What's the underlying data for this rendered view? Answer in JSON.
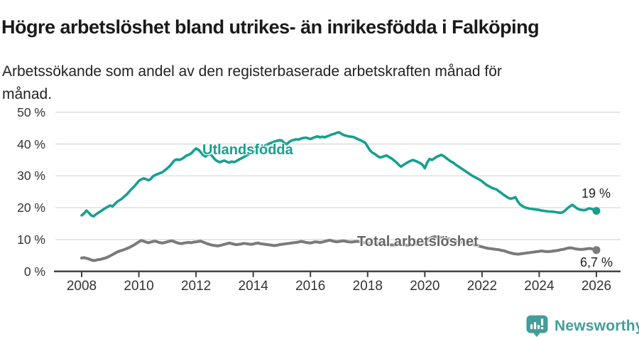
{
  "header": {
    "title": "Högre arbetslöshet bland utrikes- än inrikesfödda i Falköping",
    "subtitle": "Arbetssökande som andel av den registerbaserade arbetskraften månad för månad."
  },
  "chart_data": {
    "type": "line",
    "title": "Högre arbetslöshet bland utrikes- än inrikesfödda i Falköping",
    "subtitle": "Arbetssökande som andel av den registerbaserade arbetskraften månad för månad.",
    "x_unit": "year-month",
    "x_start": 2008,
    "x_step_months": 1,
    "x_range": [
      2008,
      2026
    ],
    "ylim": [
      0,
      50
    ],
    "y_ticks": [
      0,
      10,
      20,
      30,
      40,
      50
    ],
    "y_tick_suffix": " %",
    "x_ticks": [
      2008,
      2010,
      2012,
      2014,
      2016,
      2018,
      2020,
      2022,
      2024,
      2026
    ],
    "grid": true,
    "legend_position": "inline-labels",
    "series": [
      {
        "name": "Utlandsfödda",
        "color": "#16a090",
        "end_label": "19 %",
        "end_value": 19,
        "values": [
          17.6,
          18.2,
          19.1,
          18.4,
          17.6,
          17.3,
          17.9,
          18.4,
          18.9,
          19.4,
          19.9,
          20.3,
          20.7,
          20.4,
          21.2,
          21.9,
          22.4,
          22.9,
          23.6,
          24.2,
          25.1,
          25.9,
          26.6,
          27.5,
          28.4,
          28.9,
          29.2,
          29.0,
          28.6,
          29.0,
          29.9,
          30.3,
          30.6,
          30.9,
          31.2,
          31.8,
          32.4,
          33.1,
          34.0,
          34.9,
          35.2,
          35.0,
          35.3,
          35.8,
          36.4,
          36.6,
          37.1,
          37.9,
          38.6,
          38.2,
          37.4,
          36.5,
          36.1,
          36.6,
          36.9,
          36.0,
          35.1,
          34.6,
          34.3,
          34.6,
          34.8,
          34.4,
          34.2,
          34.5,
          34.3,
          34.7,
          35.1,
          35.5,
          35.9,
          36.4,
          36.7,
          37.0,
          37.4,
          37.8,
          38.2,
          38.6,
          39.0,
          39.5,
          39.9,
          40.2,
          40.5,
          40.8,
          41.0,
          41.2,
          41.1,
          40.4,
          39.9,
          40.6,
          41.1,
          41.3,
          41.5,
          41.4,
          41.7,
          41.9,
          42.0,
          41.8,
          41.6,
          41.9,
          42.2,
          42.4,
          42.1,
          42.3,
          42.1,
          42.4,
          42.7,
          43.0,
          43.2,
          43.5,
          43.7,
          43.2,
          42.8,
          42.6,
          42.4,
          42.3,
          42.2,
          41.9,
          41.5,
          41.2,
          40.8,
          40.4,
          39.2,
          38.0,
          37.3,
          36.9,
          36.3,
          35.8,
          35.9,
          36.2,
          36.4,
          35.9,
          35.5,
          34.9,
          34.3,
          33.5,
          32.9,
          33.4,
          33.9,
          34.3,
          34.7,
          35.0,
          34.7,
          34.4,
          34.0,
          33.5,
          32.4,
          34.2,
          35.3,
          35.0,
          35.5,
          36.0,
          36.3,
          36.6,
          36.2,
          35.6,
          35.0,
          34.5,
          34.1,
          33.5,
          33.0,
          32.5,
          32.0,
          31.5,
          31.0,
          30.5,
          30.0,
          29.6,
          29.2,
          28.8,
          28.3,
          27.7,
          27.1,
          26.7,
          26.3,
          26.0,
          25.8,
          25.2,
          24.7,
          24.1,
          23.6,
          23.1,
          22.8,
          23.0,
          23.3,
          22.0,
          21.0,
          20.5,
          20.1,
          19.9,
          19.7,
          19.6,
          19.5,
          19.4,
          19.3,
          19.1,
          19.0,
          18.9,
          18.8,
          18.8,
          18.7,
          18.6,
          18.5,
          18.4,
          18.6,
          19.2,
          19.9,
          20.5,
          20.9,
          20.3,
          19.7,
          19.4,
          19.3,
          19.2,
          19.5,
          19.8,
          19.6,
          19.3,
          19.0
        ]
      },
      {
        "name": "Total arbetslöshet",
        "color": "#7a7a7a",
        "label_color": "#666666",
        "end_label": "6,7 %",
        "end_value": 6.7,
        "values": [
          4.2,
          4.3,
          4.1,
          3.9,
          3.6,
          3.4,
          3.5,
          3.7,
          3.8,
          4.0,
          4.2,
          4.5,
          4.9,
          5.3,
          5.7,
          6.1,
          6.4,
          6.6,
          6.9,
          7.2,
          7.5,
          7.9,
          8.3,
          8.8,
          9.3,
          9.7,
          9.5,
          9.2,
          9.0,
          9.2,
          9.4,
          9.5,
          9.2,
          9.0,
          8.9,
          9.1,
          9.3,
          9.5,
          9.6,
          9.3,
          9.0,
          8.8,
          8.7,
          8.9,
          9.0,
          9.1,
          9.0,
          9.2,
          9.3,
          9.4,
          9.5,
          9.2,
          8.9,
          8.6,
          8.4,
          8.2,
          8.1,
          8.0,
          8.1,
          8.3,
          8.5,
          8.7,
          8.9,
          8.7,
          8.5,
          8.4,
          8.5,
          8.6,
          8.8,
          8.7,
          8.6,
          8.5,
          8.6,
          8.8,
          8.9,
          8.7,
          8.6,
          8.5,
          8.4,
          8.3,
          8.2,
          8.1,
          8.2,
          8.4,
          8.5,
          8.6,
          8.7,
          8.8,
          8.9,
          9.0,
          9.1,
          9.2,
          9.4,
          9.3,
          9.1,
          9.0,
          8.9,
          9.1,
          9.3,
          9.2,
          9.1,
          9.2,
          9.4,
          9.6,
          9.8,
          9.6,
          9.4,
          9.3,
          9.4,
          9.5,
          9.6,
          9.4,
          9.3,
          9.2,
          9.3,
          9.4,
          9.4,
          9.3,
          9.1,
          9.0,
          8.9,
          8.8,
          8.7,
          8.8,
          8.9,
          8.9,
          8.8,
          8.6,
          8.5,
          8.4,
          8.3,
          8.3,
          8.4,
          8.5,
          8.6,
          8.4,
          8.3,
          8.2,
          8.3,
          8.4,
          8.5,
          8.6,
          8.7,
          8.8,
          9.0,
          9.5,
          10.3,
          10.7,
          10.9,
          10.8,
          10.7,
          10.6,
          10.5,
          10.4,
          10.2,
          10.0,
          9.8,
          9.6,
          9.4,
          9.3,
          9.1,
          8.9,
          8.7,
          8.6,
          8.4,
          8.3,
          8.1,
          7.9,
          7.7,
          7.5,
          7.3,
          7.2,
          7.1,
          7.0,
          6.9,
          6.8,
          6.6,
          6.5,
          6.3,
          6.0,
          5.8,
          5.6,
          5.5,
          5.4,
          5.5,
          5.6,
          5.7,
          5.8,
          5.9,
          6.0,
          6.1,
          6.2,
          6.3,
          6.4,
          6.3,
          6.2,
          6.2,
          6.3,
          6.4,
          6.5,
          6.6,
          6.8,
          6.9,
          7.1,
          7.3,
          7.4,
          7.3,
          7.1,
          7.0,
          6.9,
          6.9,
          7.0,
          7.1,
          7.2,
          7.1,
          6.9,
          6.7
        ]
      }
    ]
  },
  "colors": {
    "teal": "#16a090",
    "gray_line": "#7a7a7a",
    "gray_label": "#666666",
    "grid": "#d9d9d9",
    "axis": "#3c3c3c",
    "tick_text": "#333333",
    "value_text": "#1f1f1f",
    "brand_teal": "#459c99",
    "title_text": "#1a1a1a"
  },
  "footer": {
    "brand": "Newsworthy"
  }
}
